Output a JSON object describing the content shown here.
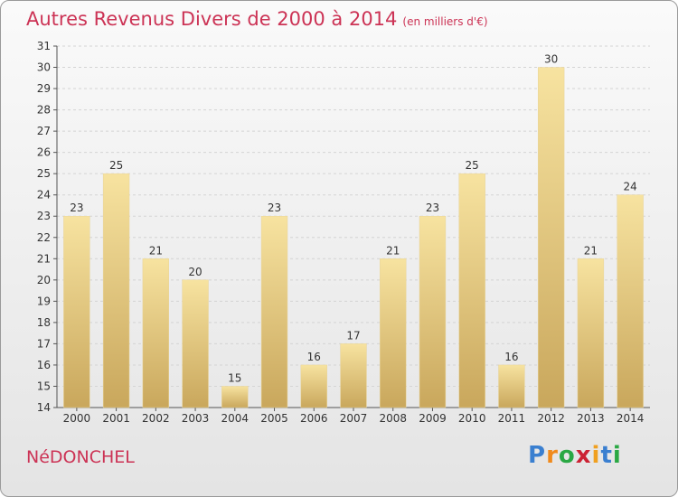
{
  "header": {
    "title": "Autres Revenus Divers de 2000 à 2014",
    "unit": "(en milliers d'€)"
  },
  "footer": {
    "commune": "NéDONCHEL",
    "brand_letters": [
      "P",
      "r",
      "o",
      "x",
      "i",
      "t",
      "i"
    ],
    "brand_colors": [
      "#3a7fd0",
      "#f08a1c",
      "#2aa844",
      "#cc2233",
      "#f0a020",
      "#3a7fd0",
      "#2aa844"
    ]
  },
  "chart_data": {
    "type": "bar",
    "categories": [
      "2000",
      "2001",
      "2002",
      "2003",
      "2004",
      "2005",
      "2006",
      "2007",
      "2008",
      "2009",
      "2010",
      "2011",
      "2012",
      "2013",
      "2014"
    ],
    "values": [
      23,
      25,
      21,
      20,
      15,
      23,
      16,
      17,
      21,
      23,
      25,
      16,
      30,
      21,
      24
    ],
    "title": "Autres Revenus Divers de 2000 à 2014",
    "ylim": [
      14,
      31
    ],
    "yticks": [
      14,
      15,
      16,
      17,
      18,
      19,
      20,
      21,
      22,
      23,
      24,
      25,
      26,
      27,
      28,
      29,
      30,
      31
    ],
    "grid": "horizontal",
    "bar_color_top": "#f7e3a0",
    "bar_color_bottom": "#c9a75c"
  }
}
